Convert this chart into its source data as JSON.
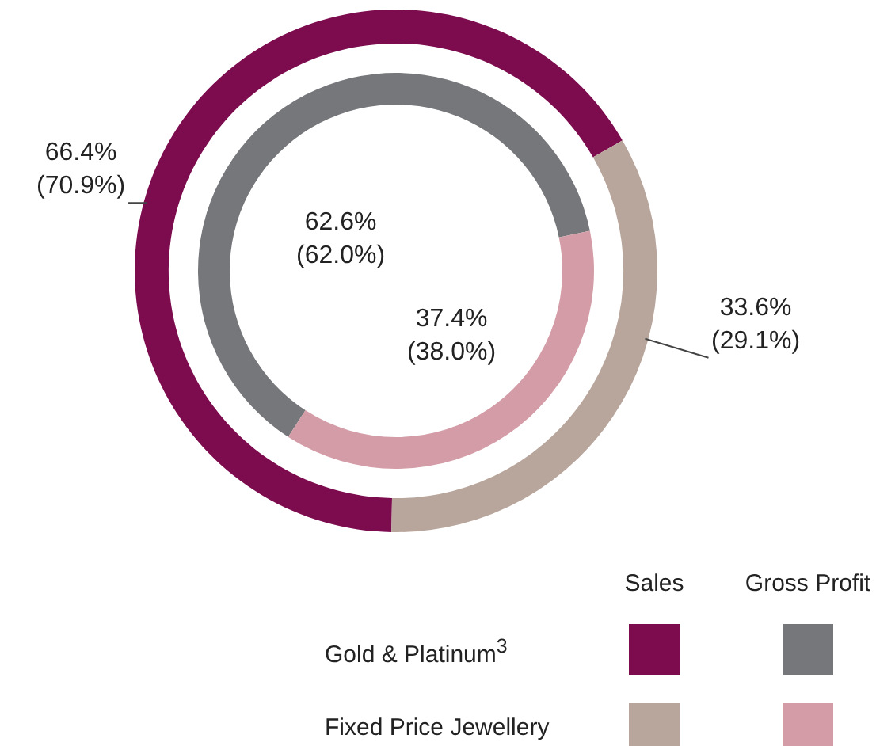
{
  "chart_data": {
    "type": "donut",
    "categories": [
      "Gold & Platinum$^{3}$",
      "Fixed Price Jewellery"
    ],
    "series": [
      {
        "name": "Sales",
        "values": [
          66.4,
          33.6
        ],
        "colors": [
          "#7d0c4f",
          "#b8a69c"
        ],
        "value_labels": [
          "66.4%\n(70.9%)",
          "33.6%\n(29.1%)"
        ]
      },
      {
        "name": "Gross Profit",
        "values": [
          62.6,
          37.4
        ],
        "colors": [
          "#76777a",
          "#d39ca6"
        ],
        "value_labels": [
          "62.6%\n(62.0%)",
          "37.4%\n(38.0%)"
        ]
      }
    ],
    "legend": "bottom right"
  }
}
